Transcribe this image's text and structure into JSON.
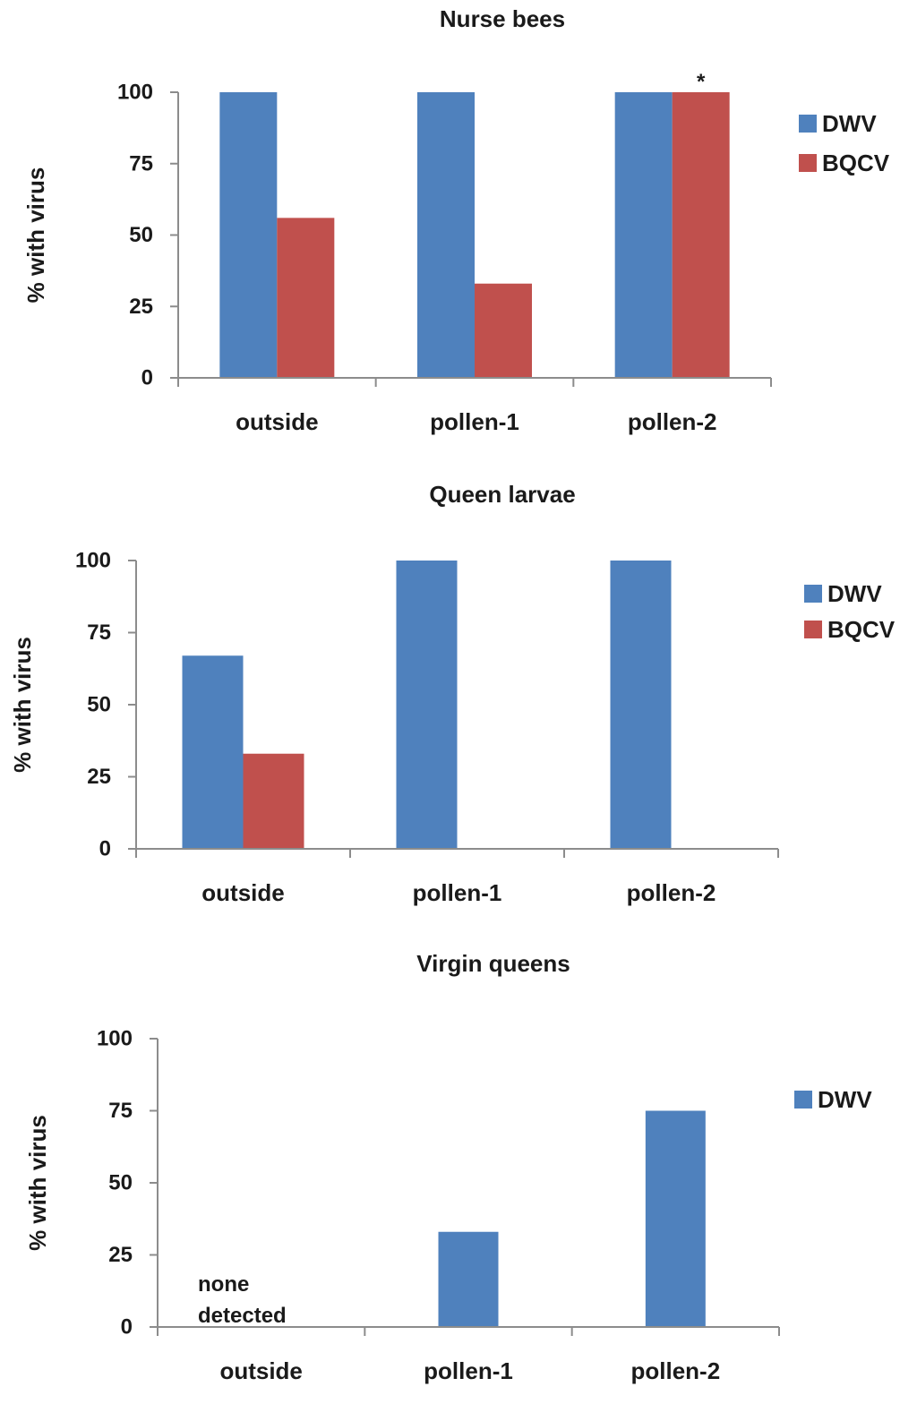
{
  "chart_data": [
    {
      "type": "bar",
      "title": "Nurse bees",
      "ylabel": "% with virus",
      "xlabel": "",
      "categories": [
        "outside",
        "pollen-1",
        "pollen-2"
      ],
      "ylim": [
        0,
        100
      ],
      "yticks": [
        0,
        25,
        50,
        75,
        100
      ],
      "series": [
        {
          "name": "DWV",
          "values": [
            100,
            100,
            100
          ],
          "color": "#4f81bd"
        },
        {
          "name": "BQCV",
          "values": [
            56,
            33,
            100
          ],
          "color": "#c0504d"
        }
      ],
      "annotations": [
        {
          "text": "*",
          "category": "pollen-2",
          "series": "BQCV"
        }
      ],
      "legend": "right",
      "grid": false
    },
    {
      "type": "bar",
      "title": "Queen larvae",
      "ylabel": "% with virus",
      "xlabel": "",
      "categories": [
        "outside",
        "pollen-1",
        "pollen-2"
      ],
      "ylim": [
        0,
        100
      ],
      "yticks": [
        0,
        25,
        50,
        75,
        100
      ],
      "series": [
        {
          "name": "DWV",
          "values": [
            67,
            100,
            100
          ],
          "color": "#4f81bd"
        },
        {
          "name": "BQCV",
          "values": [
            33,
            0,
            0
          ],
          "color": "#c0504d"
        }
      ],
      "annotations": [],
      "legend": "right",
      "grid": false
    },
    {
      "type": "bar",
      "title": "Virgin queens",
      "ylabel": "% with virus",
      "xlabel": "",
      "categories": [
        "outside",
        "pollen-1",
        "pollen-2"
      ],
      "ylim": [
        0,
        100
      ],
      "yticks": [
        0,
        25,
        50,
        75,
        100
      ],
      "series": [
        {
          "name": "DWV",
          "values": [
            0,
            33,
            75
          ],
          "color": "#4f81bd"
        }
      ],
      "annotations": [
        {
          "text": "none detected",
          "lines": [
            "none",
            "detected"
          ],
          "category": "outside"
        }
      ],
      "legend": "right",
      "grid": false
    }
  ]
}
